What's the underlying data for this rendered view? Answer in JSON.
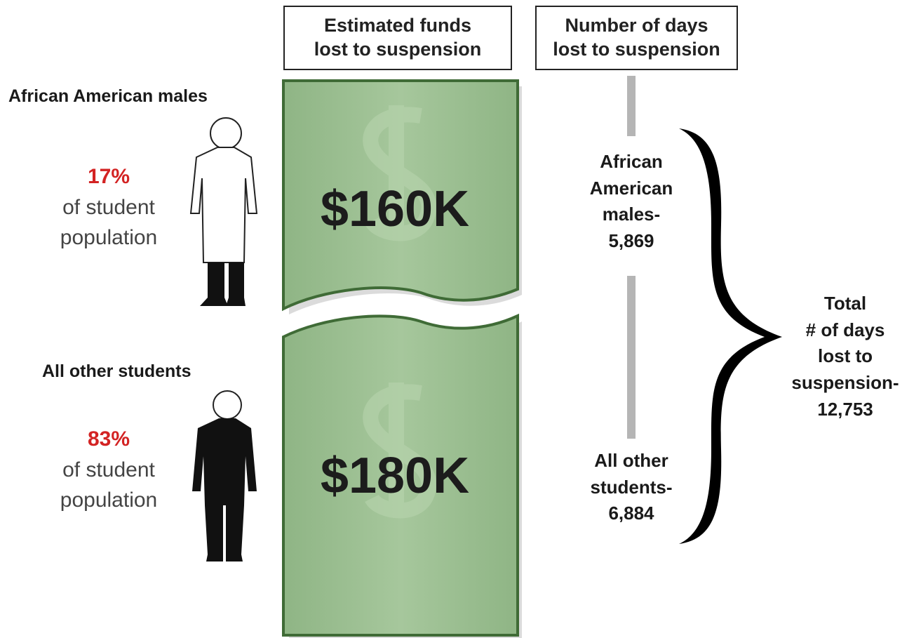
{
  "headers": {
    "funds": [
      "Estimated funds",
      "lost to suspension"
    ],
    "days": [
      "Number of days",
      "lost to suspension"
    ]
  },
  "groups": [
    {
      "name": "African American males",
      "share": "17%",
      "share_text": [
        "of student",
        "population"
      ],
      "funds": "$160K",
      "days_label": [
        "African",
        "American",
        "males-"
      ],
      "days": "5,869"
    },
    {
      "name": "All other students",
      "share": "83%",
      "share_text": [
        "of student",
        "population"
      ],
      "funds": "$180K",
      "days_label": [
        "All other",
        "students-"
      ],
      "days": "6,884"
    }
  ],
  "total": {
    "label": [
      "Total",
      "# of days",
      "lost to",
      "suspension-"
    ],
    "value": "12,753"
  }
}
